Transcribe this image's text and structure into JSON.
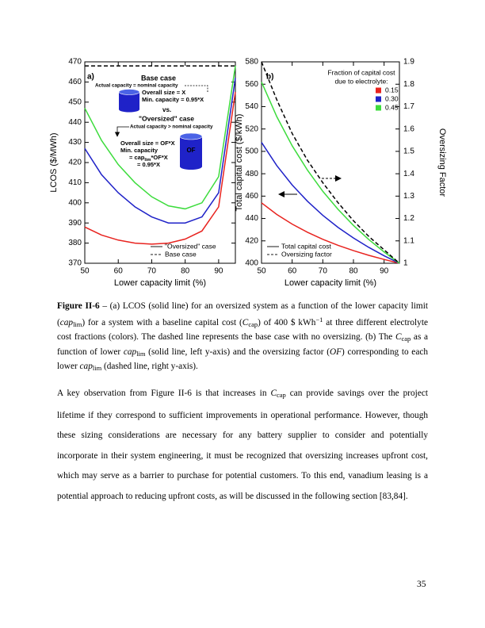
{
  "chart_data": [
    {
      "type": "line",
      "xlabel": "Lower capacity limit (%)",
      "ylabel": "LCOS ($/MWh)",
      "xlim": [
        50,
        95
      ],
      "xticks": [
        50,
        60,
        70,
        80,
        90
      ],
      "ylim": [
        370,
        470
      ],
      "yticks": [
        370,
        380,
        390,
        400,
        410,
        420,
        430,
        440,
        450,
        460,
        470
      ],
      "x": [
        50,
        55,
        60,
        65,
        70,
        75,
        80,
        85,
        90,
        95
      ],
      "series": [
        {
          "color": "#e8231f",
          "values": [
            388,
            384,
            381.5,
            380,
            379.5,
            380,
            382,
            386,
            398,
            455
          ]
        },
        {
          "color": "#1f22c8",
          "values": [
            427,
            414,
            405,
            398,
            393,
            390,
            390,
            393,
            405,
            462
          ]
        },
        {
          "color": "#3ddc3d",
          "values": [
            447,
            431,
            419,
            410,
            403,
            398.5,
            397,
            400,
            413,
            468
          ]
        },
        {
          "color": "#000000",
          "dash": true,
          "values": [
            468,
            468,
            468,
            468,
            468,
            468,
            468,
            468,
            468,
            468
          ]
        }
      ],
      "style_legend": [
        {
          "label": "\"Oversized\" case",
          "color": "#666666"
        },
        {
          "label": "Base case",
          "dash": true,
          "color": "#666666"
        }
      ],
      "annotations": [
        "a)",
        "Base case",
        "Actual capacity = nominal capacity",
        "Overall size = X",
        "Min. capacity = 0.95*X",
        "vs.",
        "\"Oversized\" case",
        "Actual capacity > nominal capacity",
        "Overall size = OF*X",
        "Min. capacity",
        [
          {
            "t": "= cap"
          },
          {
            "t": "lim",
            "s": "sub"
          },
          {
            "t": "*OF*X"
          }
        ],
        "= 0.95*X",
        "OF"
      ]
    },
    {
      "type": "line",
      "xlabel": "Lower capacity limit (%)",
      "ylabel": "Total capital cost ($/kWh)",
      "y2label": "Oversizing Factor",
      "xlim": [
        50,
        95
      ],
      "xticks": [
        50,
        60,
        70,
        80,
        90
      ],
      "ylim": [
        400,
        580
      ],
      "yticks": [
        400,
        420,
        440,
        460,
        480,
        500,
        520,
        540,
        560,
        580
      ],
      "y2lim": [
        1,
        1.9
      ],
      "y2ticks": [
        1,
        1.1,
        1.2,
        1.3,
        1.4,
        1.5,
        1.6,
        1.7,
        1.8,
        1.9
      ],
      "x": [
        50,
        55,
        60,
        65,
        70,
        75,
        80,
        85,
        90,
        95
      ],
      "series": [
        {
          "name": "0.15",
          "color": "#e8231f",
          "values": [
            454,
            443.6,
            435,
            427.7,
            421.4,
            416,
            411.3,
            407.1,
            403.4,
            400
          ]
        },
        {
          "name": "0.30",
          "color": "#1f22c8",
          "values": [
            508,
            487.2,
            470,
            455.4,
            442.8,
            432,
            422.6,
            414.2,
            406.7,
            400
          ]
        },
        {
          "name": "0.45",
          "color": "#3ddc3d",
          "values": [
            562,
            530.9,
            505,
            483.2,
            464.3,
            448.1,
            433.8,
            421.2,
            410.1,
            400
          ]
        },
        {
          "color": "#000000",
          "dash": true,
          "axis": "y2",
          "values": [
            1.9,
            1.73,
            1.58,
            1.46,
            1.36,
            1.27,
            1.19,
            1.12,
            1.06,
            1
          ]
        }
      ],
      "legend_title": [
        "Fraction of capital cost",
        "due to electrolyte:"
      ],
      "style_legend": [
        {
          "label": "Total capital cost",
          "color": "#666666"
        },
        {
          "label": "Oversizing factor",
          "dash": true,
          "color": "#666666"
        }
      ],
      "annotations": [
        "b)"
      ]
    }
  ],
  "caption": [
    {
      "t": "Figure II-6",
      "s": "b"
    },
    {
      "t": " – (a) LCOS (solid line) for an oversized system as a function of the lower capacity limit ("
    },
    {
      "t": "cap",
      "s": "i"
    },
    {
      "t": "lim",
      "s": "sub"
    },
    {
      "t": ") for a system with a baseline capital cost ("
    },
    {
      "t": "C",
      "s": "i"
    },
    {
      "t": "cap",
      "s": "sub"
    },
    {
      "t": ") of 400 $ kWh"
    },
    {
      "t": "−1",
      "s": "sup"
    },
    {
      "t": " at three different electrolyte cost fractions (colors). The dashed line represents the base case with no oversizing. (b) The "
    },
    {
      "t": "C",
      "s": "i"
    },
    {
      "t": "cap",
      "s": "sub"
    },
    {
      "t": " as a function of lower "
    },
    {
      "t": "cap",
      "s": "i"
    },
    {
      "t": "lim",
      "s": "sub"
    },
    {
      "t": " (solid line, left y-axis) and the oversizing factor ("
    },
    {
      "t": "OF",
      "s": "i"
    },
    {
      "t": ") corresponding to each lower "
    },
    {
      "t": "cap",
      "s": "i"
    },
    {
      "t": "lim",
      "s": "sub"
    },
    {
      "t": " (dashed line, right y-axis)."
    }
  ],
  "paragraph": [
    {
      "t": "A key observation from Figure II-6 is that increases in "
    },
    {
      "t": "C",
      "s": "i"
    },
    {
      "t": "cap",
      "s": "sub"
    },
    {
      "t": " can provide savings over the project lifetime if they correspond to sufficient improvements in operational performance. However, though these sizing considerations are necessary for any battery supplier to consider and potentially incorporate in their system engineering, it must be recognized that oversizing increases upfront cost, which may serve as a barrier to purchase for potential customers. To this end, vanadium leasing is a potential approach to reducing upfront costs, as will be discussed in the following section [83,84]."
    }
  ],
  "page_number": "35"
}
